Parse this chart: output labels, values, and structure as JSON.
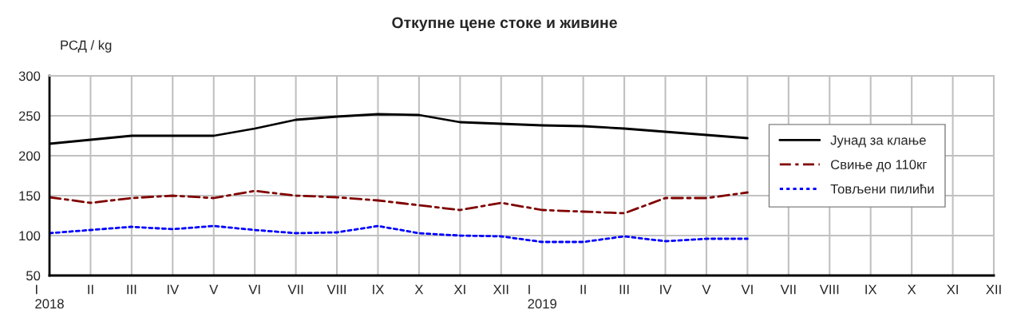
{
  "chart_data": {
    "type": "line",
    "title": "Откупне цене стоке и живине",
    "ylabel": "РСД / kg",
    "categories": [
      "I\n2018",
      "II",
      "III",
      "IV",
      "V",
      "VI",
      "VII",
      "VIII",
      "IX",
      "X",
      "XI",
      "XII",
      "I\n2019",
      "II",
      "III",
      "IV",
      "V",
      "VI",
      "VII",
      "VIII",
      "IX",
      "X",
      "XI",
      "XII"
    ],
    "series": [
      {
        "name": "Јунад за клање",
        "color": "#000000",
        "line_style": "solid",
        "values": [
          215,
          220,
          225,
          225,
          225,
          234,
          245,
          249,
          252,
          251,
          242,
          240,
          238,
          237,
          234,
          230,
          226,
          222,
          null,
          null,
          null,
          null,
          null,
          null
        ]
      },
      {
        "name": "Свиње до 110кг",
        "color": "#800000",
        "line_style": "dashed",
        "values": [
          148,
          141,
          147,
          150,
          147,
          156,
          150,
          148,
          144,
          138,
          132,
          141,
          132,
          130,
          128,
          147,
          147,
          154,
          null,
          null,
          null,
          null,
          null,
          null
        ]
      },
      {
        "name": "Товљени пилићи",
        "color": "#0000ff",
        "line_style": "dotted",
        "values": [
          103,
          107,
          111,
          108,
          112,
          107,
          103,
          104,
          112,
          103,
          100,
          99,
          92,
          92,
          99,
          93,
          96,
          96,
          null,
          null,
          null,
          null,
          null,
          null
        ]
      }
    ],
    "ylim": [
      50,
      300
    ],
    "yticks": [
      50,
      100,
      150,
      200,
      250,
      300
    ],
    "grid": true,
    "legend": "right",
    "marker": "none"
  }
}
